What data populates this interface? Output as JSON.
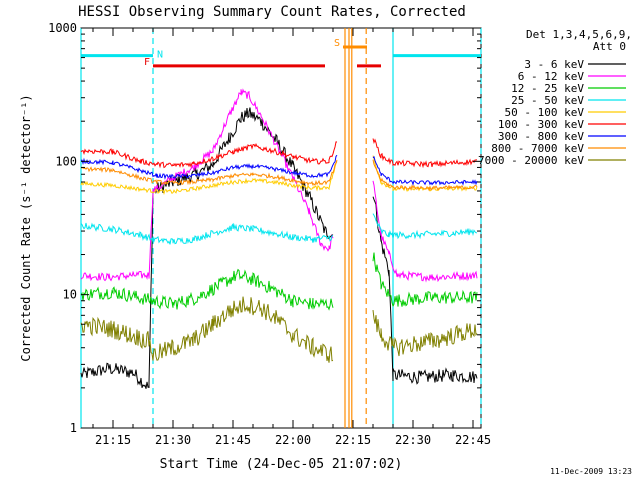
{
  "chart_data": {
    "type": "line",
    "title": "HESSI Observing Summary Count Rates, Corrected",
    "xlabel": "Start Time (24-Dec-05 21:07:02)",
    "ylabel": "Corrected Count Rate (s⁻¹ detector⁻¹)",
    "yscale": "log",
    "ylim": [
      1,
      1000
    ],
    "xlim_minutes": [
      7.0,
      107.0
    ],
    "yticks": [
      1,
      10,
      100,
      1000
    ],
    "yticklabels": [
      "1",
      "10",
      "100",
      "1000"
    ],
    "xticks_minutes": [
      15,
      30,
      45,
      60,
      75,
      90,
      105
    ],
    "xticklabels": [
      "21:15",
      "21:30",
      "21:45",
      "22:00",
      "22:15",
      "22:30",
      "22:45"
    ],
    "footer": "11-Dec-2009 13:23",
    "legend": {
      "title_line1": "Det 1,3,4,5,6,9,",
      "title_line2": "Att 0",
      "position": "right"
    },
    "flags": [
      {
        "label": "N",
        "color": "#00e5ee",
        "segments": [
          [
            7.0,
            25.0
          ],
          [
            85.0,
            107.0
          ]
        ],
        "level": 620
      },
      {
        "label": "F",
        "color": "#e60000",
        "segments": [
          [
            25.0,
            68.0
          ],
          [
            76.0,
            82.0
          ]
        ],
        "level": 520
      },
      {
        "label": "S",
        "color": "#ff8c00",
        "segments": [
          [
            72.5,
            78.5
          ]
        ],
        "level": 720
      }
    ],
    "vlines": [
      {
        "x": 7.0,
        "color": "#00e5ee",
        "dash": "solid"
      },
      {
        "x": 25.0,
        "color": "#00e5ee",
        "dash": "dashed"
      },
      {
        "x": 85.0,
        "color": "#00e5ee",
        "dash": "solid"
      },
      {
        "x": 107.0,
        "color": "#00e5ee",
        "dash": "dashed"
      },
      {
        "x": 73.0,
        "color": "#ff8c00",
        "dash": "solid"
      },
      {
        "x": 74.0,
        "color": "#ff8c00",
        "dash": "solid"
      },
      {
        "x": 74.7,
        "color": "#ff8c00",
        "dash": "solid"
      },
      {
        "x": 78.3,
        "color": "#ff8c00",
        "dash": "dashed"
      }
    ],
    "series": [
      {
        "name": "3 - 6 keV",
        "color": "#000000",
        "noise": 0.05,
        "points": [
          [
            7,
            2.5
          ],
          [
            14,
            2.8
          ],
          [
            20,
            2.6
          ],
          [
            24,
            2.0
          ],
          [
            25,
            60
          ],
          [
            30,
            70
          ],
          [
            36,
            80
          ],
          [
            40,
            95
          ],
          [
            44,
            150
          ],
          [
            47,
            210
          ],
          [
            49,
            230
          ],
          [
            52,
            200
          ],
          [
            56,
            140
          ],
          [
            60,
            90
          ],
          [
            64,
            55
          ],
          [
            68,
            30
          ],
          [
            70,
            28
          ],
          [
            72,
            null
          ],
          [
            79,
            null
          ],
          [
            80,
            60
          ],
          [
            82,
            25
          ],
          [
            84,
            15
          ],
          [
            85,
            2.5
          ],
          [
            92,
            2.4
          ],
          [
            100,
            2.5
          ],
          [
            106,
            2.4
          ]
        ]
      },
      {
        "name": "6 - 12 keV",
        "color": "#ff00ff",
        "noise": 0.03,
        "points": [
          [
            7,
            14
          ],
          [
            14,
            13.5
          ],
          [
            20,
            14
          ],
          [
            24,
            14
          ],
          [
            25,
            60
          ],
          [
            30,
            75
          ],
          [
            35,
            90
          ],
          [
            40,
            120
          ],
          [
            44,
            220
          ],
          [
            47,
            330
          ],
          [
            49,
            310
          ],
          [
            52,
            220
          ],
          [
            56,
            130
          ],
          [
            60,
            75
          ],
          [
            64,
            42
          ],
          [
            67,
            24
          ],
          [
            69,
            22
          ],
          [
            70,
            28
          ],
          [
            72,
            null
          ],
          [
            79,
            null
          ],
          [
            80,
            70
          ],
          [
            82,
            28
          ],
          [
            84,
            20
          ],
          [
            86,
            14
          ],
          [
            95,
            13.5
          ],
          [
            106,
            14
          ]
        ]
      },
      {
        "name": "12 - 25 keV",
        "color": "#00cc00",
        "noise": 0.05,
        "points": [
          [
            7,
            10
          ],
          [
            15,
            10.5
          ],
          [
            25,
            9
          ],
          [
            30,
            8.5
          ],
          [
            36,
            9.5
          ],
          [
            42,
            12
          ],
          [
            46,
            14
          ],
          [
            50,
            13
          ],
          [
            55,
            11
          ],
          [
            60,
            9
          ],
          [
            65,
            8.5
          ],
          [
            70,
            8.5
          ],
          [
            72,
            null
          ],
          [
            79,
            null
          ],
          [
            80,
            20
          ],
          [
            82,
            12
          ],
          [
            85,
            9
          ],
          [
            95,
            9.5
          ],
          [
            106,
            9.5
          ]
        ]
      },
      {
        "name": "25 - 50 keV",
        "color": "#00e5ee",
        "noise": 0.025,
        "points": [
          [
            7,
            33
          ],
          [
            15,
            31
          ],
          [
            22,
            28
          ],
          [
            25,
            26
          ],
          [
            30,
            25
          ],
          [
            35,
            26
          ],
          [
            40,
            29
          ],
          [
            45,
            32
          ],
          [
            50,
            31
          ],
          [
            55,
            29
          ],
          [
            60,
            27
          ],
          [
            65,
            26
          ],
          [
            70,
            27
          ],
          [
            72,
            null
          ],
          [
            79,
            null
          ],
          [
            80,
            40
          ],
          [
            82,
            30
          ],
          [
            84,
            28
          ],
          [
            90,
            28
          ],
          [
            100,
            29
          ],
          [
            106,
            30
          ]
        ]
      },
      {
        "name": "50 - 100 keV",
        "color": "#ffcc00",
        "noise": 0.015,
        "points": [
          [
            7,
            68
          ],
          [
            15,
            66
          ],
          [
            25,
            60
          ],
          [
            30,
            59
          ],
          [
            35,
            62
          ],
          [
            40,
            66
          ],
          [
            45,
            70
          ],
          [
            50,
            72
          ],
          [
            55,
            70
          ],
          [
            60,
            66
          ],
          [
            65,
            63
          ],
          [
            69,
            64
          ],
          [
            71,
            100
          ],
          [
            72,
            null
          ],
          [
            79,
            null
          ],
          [
            80,
            110
          ],
          [
            82,
            70
          ],
          [
            85,
            62
          ],
          [
            95,
            62
          ],
          [
            106,
            63
          ]
        ]
      },
      {
        "name": "100 - 300 keV",
        "color": "#ff0000",
        "noise": 0.02,
        "points": [
          [
            7,
            120
          ],
          [
            15,
            118
          ],
          [
            22,
            100
          ],
          [
            26,
            95
          ],
          [
            30,
            93
          ],
          [
            35,
            96
          ],
          [
            40,
            105
          ],
          [
            45,
            118
          ],
          [
            50,
            130
          ],
          [
            55,
            120
          ],
          [
            60,
            108
          ],
          [
            65,
            100
          ],
          [
            69,
            100
          ],
          [
            71,
            140
          ],
          [
            72,
            null
          ],
          [
            79,
            null
          ],
          [
            80,
            150
          ],
          [
            82,
            110
          ],
          [
            85,
            97
          ],
          [
            95,
            95
          ],
          [
            106,
            100
          ]
        ]
      },
      {
        "name": "300 - 800 keV",
        "color": "#0000ff",
        "noise": 0.015,
        "points": [
          [
            7,
            100
          ],
          [
            15,
            98
          ],
          [
            22,
            85
          ],
          [
            26,
            78
          ],
          [
            30,
            77
          ],
          [
            35,
            78
          ],
          [
            40,
            82
          ],
          [
            45,
            90
          ],
          [
            50,
            92
          ],
          [
            55,
            88
          ],
          [
            60,
            82
          ],
          [
            65,
            78
          ],
          [
            69,
            80
          ],
          [
            71,
            110
          ],
          [
            72,
            null
          ],
          [
            79,
            null
          ],
          [
            80,
            110
          ],
          [
            82,
            80
          ],
          [
            85,
            70
          ],
          [
            95,
            69
          ],
          [
            106,
            70
          ]
        ]
      },
      {
        "name": "800 - 7000 keV",
        "color": "#ff8c00",
        "noise": 0.015,
        "points": [
          [
            7,
            88
          ],
          [
            15,
            86
          ],
          [
            22,
            75
          ],
          [
            26,
            70
          ],
          [
            30,
            69
          ],
          [
            35,
            70
          ],
          [
            40,
            73
          ],
          [
            45,
            78
          ],
          [
            50,
            80
          ],
          [
            55,
            77
          ],
          [
            60,
            72
          ],
          [
            65,
            68
          ],
          [
            69,
            70
          ],
          [
            71,
            100
          ],
          [
            72,
            null
          ],
          [
            79,
            null
          ],
          [
            80,
            100
          ],
          [
            82,
            72
          ],
          [
            85,
            64
          ],
          [
            95,
            63
          ],
          [
            106,
            64
          ]
        ]
      },
      {
        "name": "7000 - 20000 keV",
        "color": "#808000",
        "noise": 0.07,
        "points": [
          [
            7,
            6
          ],
          [
            15,
            5.5
          ],
          [
            24,
            4.5
          ],
          [
            25,
            3.5
          ],
          [
            30,
            4
          ],
          [
            35,
            4.5
          ],
          [
            40,
            6
          ],
          [
            44,
            7.5
          ],
          [
            48,
            8.5
          ],
          [
            52,
            8
          ],
          [
            56,
            6.5
          ],
          [
            60,
            5
          ],
          [
            65,
            4
          ],
          [
            70,
            3.5
          ],
          [
            72,
            null
          ],
          [
            79,
            null
          ],
          [
            80,
            7
          ],
          [
            82,
            5
          ],
          [
            85,
            4
          ],
          [
            95,
            4.5
          ],
          [
            106,
            5.5
          ]
        ]
      }
    ]
  }
}
